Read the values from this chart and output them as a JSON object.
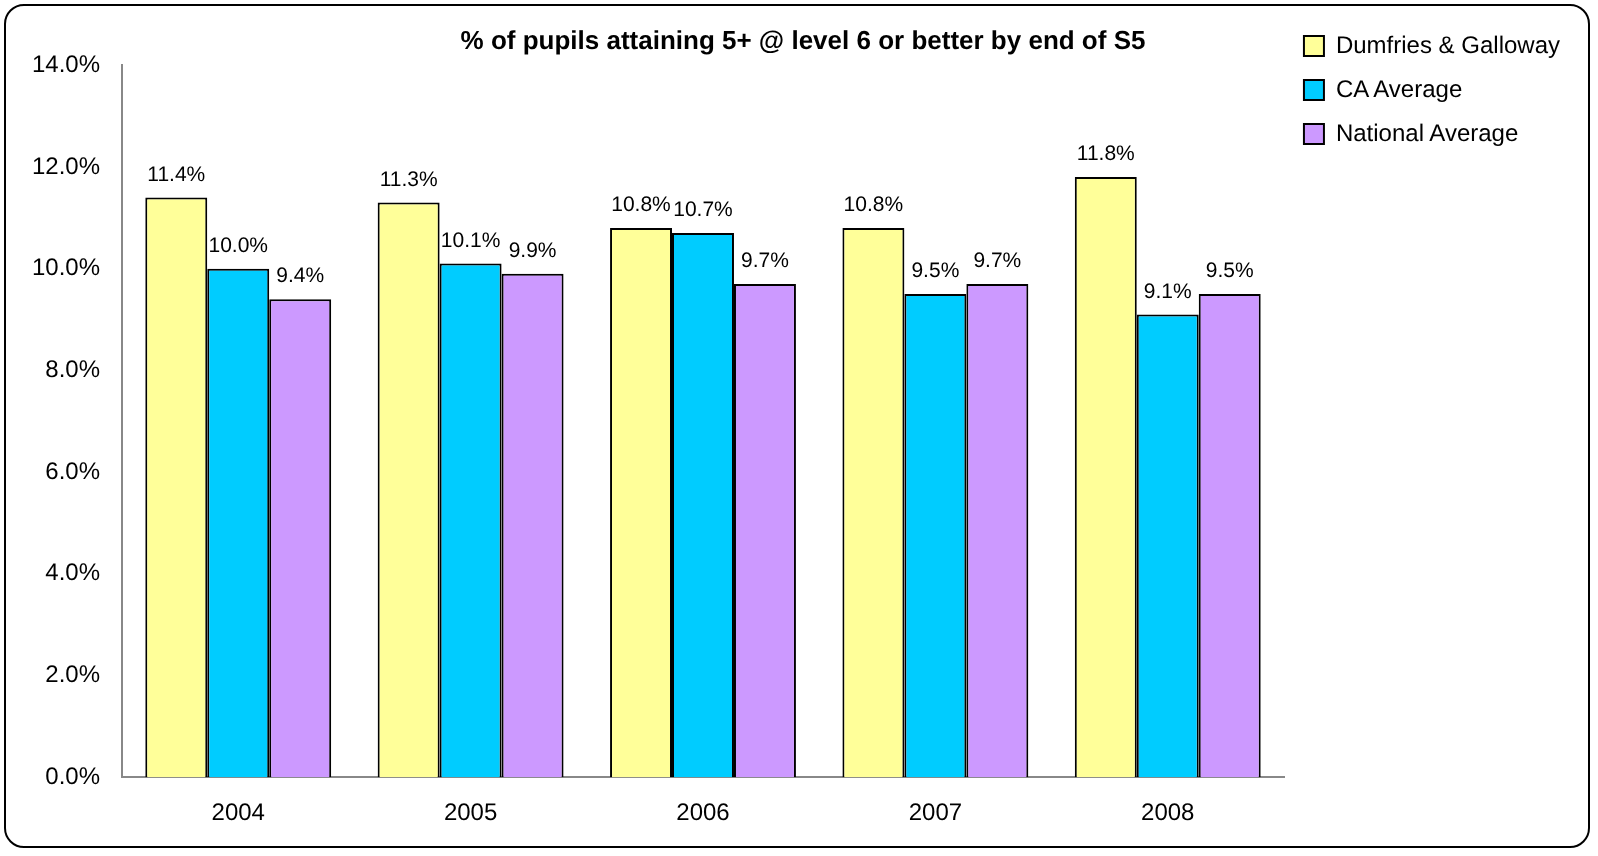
{
  "chart_data": {
    "type": "bar",
    "title": "% of pupils attaining 5+ @ level 6 or better by end of S5",
    "categories": [
      "2004",
      "2005",
      "2006",
      "2007",
      "2008"
    ],
    "series": [
      {
        "name": "Dumfries & Galloway",
        "color": "#ffff99",
        "values": [
          11.4,
          11.3,
          10.8,
          10.8,
          11.8
        ],
        "value_labels": [
          "11.4%",
          "11.3%",
          "10.8%",
          "10.8%",
          "11.8%"
        ]
      },
      {
        "name": "CA Average",
        "color": "#00ccff",
        "values": [
          10.0,
          10.1,
          10.7,
          9.5,
          9.1
        ],
        "value_labels": [
          "10.0%",
          "10.1%",
          "10.7%",
          "9.5%",
          "9.1%"
        ]
      },
      {
        "name": "National Average",
        "color": "#cc99ff",
        "values": [
          9.4,
          9.9,
          9.7,
          9.7,
          9.5
        ],
        "value_labels": [
          "9.4%",
          "9.9%",
          "9.7%",
          "9.7%",
          "9.5%"
        ]
      }
    ],
    "ylim": [
      0,
      14
    ],
    "yticks": [
      {
        "value": 0,
        "label": "0.0%"
      },
      {
        "value": 2,
        "label": "2.0%"
      },
      {
        "value": 4,
        "label": "4.0%"
      },
      {
        "value": 6,
        "label": "6.0%"
      },
      {
        "value": 8,
        "label": "8.0%"
      },
      {
        "value": 10,
        "label": "10.0%"
      },
      {
        "value": 12,
        "label": "12.0%"
      },
      {
        "value": 14,
        "label": "14.0%"
      }
    ],
    "grid": false,
    "legend": "top right"
  }
}
